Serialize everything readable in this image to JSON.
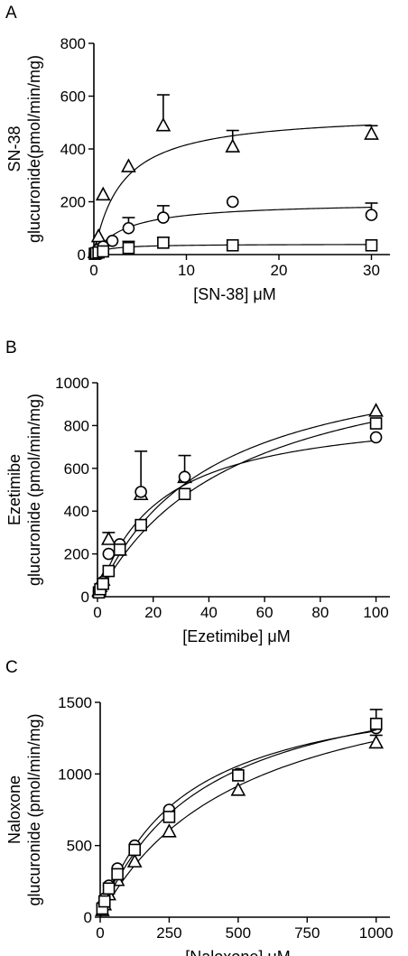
{
  "chart_data": [
    {
      "type": "scatter",
      "panel_label": "A",
      "ylabel_lines": [
        "SN-38",
        "glucuronide(pmol/min/mg)"
      ],
      "xlabel": "[SN-38] μM",
      "xlim": [
        0,
        32
      ],
      "ylim": [
        0,
        800
      ],
      "xticks": [
        0,
        10,
        20,
        30
      ],
      "yticks": [
        0,
        200,
        400,
        600,
        800
      ],
      "series": [
        {
          "marker": "triangle",
          "x": [
            0.1,
            0.25,
            0.5,
            1,
            3.75,
            7.5,
            15,
            30
          ],
          "y": [
            10,
            20,
            70,
            228,
            335,
            490,
            410,
            458
          ],
          "err": [
            0,
            0,
            0,
            0,
            0,
            115,
            60,
            30
          ],
          "fit": {
            "vmax": 540,
            "km": 3.0
          }
        },
        {
          "marker": "circle",
          "x": [
            0.1,
            0.25,
            0.5,
            1,
            2,
            3.75,
            7.5,
            15,
            30
          ],
          "y": [
            5,
            10,
            20,
            30,
            52,
            100,
            140,
            200,
            150
          ],
          "err": [
            0,
            0,
            0,
            0,
            0,
            40,
            45,
            0,
            45
          ],
          "fit": {
            "vmax": 200,
            "km": 3.5
          }
        },
        {
          "marker": "square",
          "x": [
            0.1,
            0.25,
            0.5,
            1,
            3.75,
            7.5,
            15,
            30
          ],
          "y": [
            3,
            5,
            8,
            12,
            25,
            45,
            35,
            35
          ],
          "err": [
            0,
            0,
            0,
            0,
            25,
            20,
            0,
            0
          ],
          "fit": {
            "vmax": 40,
            "km": 1.5
          }
        }
      ]
    },
    {
      "type": "scatter",
      "panel_label": "B",
      "ylabel_lines": [
        "Ezetimibe",
        "glucuronide (pmol/min/mg)"
      ],
      "xlabel": "[Ezetimibe] μM",
      "xlim": [
        0,
        105
      ],
      "ylim": [
        0,
        1000
      ],
      "xticks": [
        0,
        20,
        40,
        60,
        80,
        100
      ],
      "yticks": [
        0,
        200,
        400,
        600,
        800,
        1000
      ],
      "series": [
        {
          "marker": "triangle",
          "x": [
            0.5,
            1,
            2,
            4,
            8,
            15.6,
            31.3,
            100
          ],
          "y": [
            30,
            50,
            80,
            270,
            220,
            480,
            560,
            870
          ],
          "err": [
            0,
            0,
            0,
            30,
            0,
            200,
            100,
            0
          ],
          "fit": {
            "vmax": 1200,
            "km": 40
          }
        },
        {
          "marker": "circle",
          "x": [
            0.5,
            1,
            2,
            4,
            8,
            15.6,
            31.3,
            100
          ],
          "y": [
            25,
            45,
            70,
            200,
            245,
            490,
            560,
            745
          ],
          "err": [
            0,
            0,
            0,
            0,
            0,
            0,
            0,
            0
          ],
          "fit": {
            "vmax": 890,
            "km": 22
          }
        },
        {
          "marker": "square",
          "x": [
            0.5,
            1,
            2,
            4,
            8,
            15.6,
            31.3,
            100
          ],
          "y": [
            20,
            35,
            60,
            120,
            220,
            335,
            480,
            810
          ],
          "err": [
            0,
            0,
            0,
            0,
            0,
            0,
            0,
            0
          ],
          "fit": {
            "vmax": 1230,
            "km": 50
          }
        }
      ]
    },
    {
      "type": "scatter",
      "panel_label": "C",
      "ylabel_lines": [
        "Naloxone",
        "glucuronide (pmol/min/mg)"
      ],
      "xlabel": "[Naloxone] μM",
      "xlim": [
        0,
        1050
      ],
      "ylim": [
        0,
        1500
      ],
      "xticks": [
        0,
        250,
        500,
        750,
        1000
      ],
      "yticks": [
        0,
        500,
        1000,
        1500
      ],
      "series": [
        {
          "marker": "triangle",
          "x": [
            7.8,
            15.6,
            31.3,
            62.5,
            125,
            250,
            500,
            1000
          ],
          "y": [
            50,
            90,
            160,
            260,
            390,
            600,
            890,
            1220
          ],
          "err": [
            0,
            0,
            0,
            0,
            0,
            0,
            0,
            50
          ],
          "fit": {
            "vmax": 1870,
            "km": 520
          }
        },
        {
          "marker": "circle",
          "x": [
            7.8,
            15.6,
            31.3,
            62.5,
            125,
            250,
            500,
            1000
          ],
          "y": [
            80,
            130,
            220,
            340,
            500,
            750,
            1000,
            1320
          ],
          "err": [
            0,
            0,
            0,
            0,
            0,
            0,
            0,
            0
          ],
          "fit": {
            "vmax": 1690,
            "km": 300
          }
        },
        {
          "marker": "square",
          "x": [
            7.8,
            15.6,
            31.3,
            62.5,
            125,
            250,
            500,
            1000
          ],
          "y": [
            60,
            110,
            200,
            300,
            470,
            700,
            990,
            1350
          ],
          "err": [
            0,
            0,
            0,
            0,
            0,
            0,
            0,
            100
          ],
          "fit": {
            "vmax": 1790,
            "km": 370
          }
        }
      ]
    }
  ]
}
